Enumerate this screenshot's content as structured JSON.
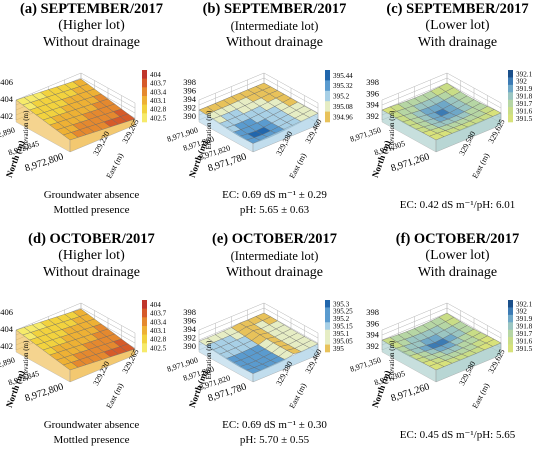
{
  "panels": [
    {
      "title": "(a) SEPTEMBER/2017",
      "lot": "(Higher lot)",
      "lot_small": false,
      "drainage": "Without drainage",
      "z_label": "Elevation (m)",
      "north_label": "North (m)",
      "east_label": "East (m)",
      "z_ticks": [
        "406",
        "404",
        "402"
      ],
      "north_ticks": [
        "8,972,800",
        "8,972,845",
        "8,972,890"
      ],
      "east_ticks": [
        "329,220",
        "329,265"
      ],
      "legend": [
        "404",
        "403.7",
        "403.4",
        "403.1",
        "402.8",
        "402.5"
      ],
      "palette": "redyellow",
      "notes": [
        "Groundwater absence",
        "Mottled presence"
      ]
    },
    {
      "title": "(b) SEPTEMBER/2017",
      "lot": "(Intermediate lot)",
      "lot_small": true,
      "drainage": "Without drainage",
      "z_label": "Elevation (m)",
      "north_label": "North (m)",
      "east_label": "East (m)",
      "z_ticks": [
        "398",
        "396",
        "394",
        "392",
        "390"
      ],
      "north_ticks": [
        "8,971,780",
        "8,971,820",
        "8,971,860",
        "8,971,900"
      ],
      "east_ticks": [
        "329,380",
        "329,460"
      ],
      "legend": [
        "395.44",
        "395.32",
        "395.2",
        "395.08",
        "394.96"
      ],
      "palette": "blueyellow",
      "notes": [
        "EC: 0.69 dS m⁻¹ ± 0.29",
        "pH: 5.65 ± 0.63"
      ]
    },
    {
      "title": "(c) SEPTEMBER/2017",
      "lot": "(Lower lot)",
      "lot_small": false,
      "drainage": "With drainage",
      "z_label": "Elevation (m)",
      "north_label": "North (m)",
      "east_label": "East (m)",
      "z_ticks": [
        "398",
        "396",
        "394",
        "392"
      ],
      "north_ticks": [
        "8,971,260",
        "8,971,305",
        "8,971,350"
      ],
      "east_ticks": [
        "329,580",
        "329,625"
      ],
      "legend": [
        "392.1",
        "392",
        "391.9",
        "391.8",
        "391.7",
        "391.6",
        "391.5"
      ],
      "palette": "bluegreen",
      "notes": [
        "EC: 0.42 dS m⁻¹/pH: 6.01"
      ]
    },
    {
      "title": "(d) OCTOBER/2017",
      "lot": "(Higher lot)",
      "lot_small": false,
      "drainage": "Without drainage",
      "z_label": "Elevation (m)",
      "north_label": "North (m)",
      "east_label": "East (m)",
      "z_ticks": [
        "406",
        "404",
        "402"
      ],
      "north_ticks": [
        "8,972,800",
        "8,972,845",
        "8,972,890"
      ],
      "east_ticks": [
        "329,220",
        "329,265"
      ],
      "legend": [
        "404",
        "403.7",
        "403.4",
        "403.1",
        "402.8",
        "402.5"
      ],
      "palette": "redyellow",
      "notes": [
        "Groundwater absence",
        "Mottled presence"
      ]
    },
    {
      "title": "(e) OCTOBER/2017",
      "lot": "(Intermediate lot)",
      "lot_small": true,
      "drainage": "Without drainage",
      "z_label": "Elevation (m)",
      "north_label": "North (m)",
      "east_label": "East (m)",
      "z_ticks": [
        "398",
        "396",
        "394",
        "392",
        "390"
      ],
      "north_ticks": [
        "8,971,780",
        "8,971,820",
        "8,971,860",
        "8,971,900"
      ],
      "east_ticks": [
        "329,380",
        "329,460"
      ],
      "legend": [
        "395.3",
        "395.25",
        "395.2",
        "395.15",
        "395.1",
        "395.05",
        "395"
      ],
      "palette": "blueyellow",
      "notes": [
        "EC: 0.69 dS m⁻¹ ± 0.30",
        "pH: 5.70 ± 0.55"
      ]
    },
    {
      "title": "(f) OCTOBER/2017",
      "lot": "(Lower lot)",
      "lot_small": false,
      "drainage": "With drainage",
      "z_label": "Elevation (m)",
      "north_label": "North (m)",
      "east_label": "East (m)",
      "z_ticks": [
        "398",
        "396",
        "394",
        "392"
      ],
      "north_ticks": [
        "8,971,260",
        "8,971,305",
        "8,971,350"
      ],
      "east_ticks": [
        "329,580",
        "329,625"
      ],
      "legend": [
        "392.1",
        "392",
        "391.9",
        "391.8",
        "391.7",
        "391.6",
        "391.5"
      ],
      "palette": "bluegreen",
      "notes": [
        "EC: 0.45 dS m⁻¹/pH: 5.65"
      ]
    }
  ],
  "palettes": {
    "redyellow": [
      "#c0362c",
      "#d65a2a",
      "#e5892e",
      "#eeb134",
      "#f2d23e",
      "#f6ea6a"
    ],
    "blueyellow": [
      "#2166ac",
      "#5a9bcf",
      "#a8d0e6",
      "#e6edc4",
      "#e8c25a"
    ],
    "bluegreen": [
      "#1a4f8a",
      "#3c7bb4",
      "#6fa8c8",
      "#9bc6c2",
      "#b6d6a4",
      "#c9dd86",
      "#d8e27a"
    ]
  },
  "chart_data": [
    {
      "type": "surface",
      "title": "(a) SEPTEMBER/2017",
      "legend": [
        "404",
        "403.7",
        "403.4",
        "403.1",
        "402.8",
        "402.5"
      ]
    },
    {
      "type": "surface",
      "title": "(b) SEPTEMBER/2017",
      "legend": [
        "395.44",
        "395.32",
        "395.2",
        "395.08",
        "394.96"
      ]
    },
    {
      "type": "surface",
      "title": "(c) SEPTEMBER/2017",
      "legend": [
        "392.1",
        "392",
        "391.9",
        "391.8",
        "391.7",
        "391.6",
        "391.5"
      ]
    },
    {
      "type": "surface",
      "title": "(d) OCTOBER/2017",
      "legend": [
        "404",
        "403.7",
        "403.4",
        "403.1",
        "402.8",
        "402.5"
      ]
    },
    {
      "type": "surface",
      "title": "(e) OCTOBER/2017",
      "legend": [
        "395.3",
        "395.25",
        "395.2",
        "395.15",
        "395.1",
        "395.05",
        "395"
      ]
    },
    {
      "type": "surface",
      "title": "(f) OCTOBER/2017",
      "legend": [
        "392.1",
        "392",
        "391.9",
        "391.8",
        "391.7",
        "391.6",
        "391.5"
      ]
    }
  ]
}
